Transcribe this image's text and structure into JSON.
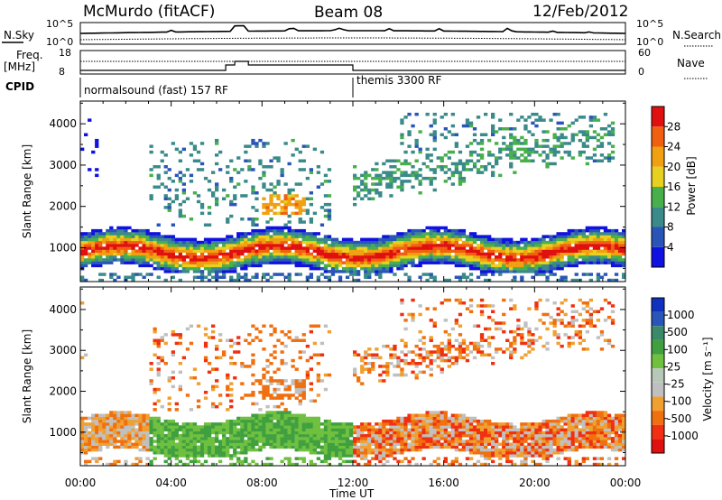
{
  "header": {
    "station": "McMurdo (fitACF)",
    "beam": "Beam 08",
    "date": "12/Feb/2012"
  },
  "summary": {
    "left_label": "N.Sky",
    "left_ticks": [
      "10^5",
      "10^0"
    ],
    "right_label": "N.Search",
    "right_ticks": [
      "10^5",
      "10^0"
    ],
    "freq_label_line1": "Freq.",
    "freq_label_line2": "[MHz]",
    "freq_ticks": [
      "18",
      "8"
    ],
    "nave_label": "Nave",
    "nave_ticks": [
      "60",
      "0"
    ],
    "cpid_label": "CPID",
    "cpid_segments": [
      {
        "label": "normalsound (fast) 157 RF",
        "start_hour": 0,
        "end_hour": 12
      },
      {
        "label": "themis 3300 RF",
        "start_hour": 12,
        "end_hour": 24
      }
    ]
  },
  "colors": {
    "power_scale": [
      "#1010e0",
      "#2a55b8",
      "#3a8a8a",
      "#48b04a",
      "#e8d020",
      "#f0a010",
      "#f06010",
      "#e01010"
    ],
    "velocity_scale": [
      "#e01010",
      "#f03010",
      "#f07010",
      "#f0a030",
      "#c0c0c0",
      "#b8c8b8",
      "#70c040",
      "#40a040",
      "#3a8a6a",
      "#2a55b8",
      "#1030c0"
    ]
  },
  "chart_data": [
    {
      "type": "heatmap",
      "panel": "power",
      "title": "",
      "xlabel": "",
      "ylabel": "Slant Range [km]",
      "xlim_hours": [
        0,
        24
      ],
      "ylim": [
        180,
        4550
      ],
      "x_tick_labels": [
        "00:00",
        "04:00",
        "08:00",
        "12:00",
        "16:00",
        "20:00",
        "00:00"
      ],
      "y_tick_values": [
        1000,
        2000,
        3000,
        4000
      ],
      "colorbar_label": "Power [dB]",
      "colorbar_tick_labels": [
        "4",
        "8",
        "12",
        "16",
        "20",
        "24",
        "28"
      ],
      "colorbar_range": [
        0,
        32
      ]
    },
    {
      "type": "heatmap",
      "panel": "velocity",
      "title": "",
      "xlabel": "Time UT",
      "ylabel": "Slant Range [km]",
      "xlim_hours": [
        0,
        24
      ],
      "ylim": [
        180,
        4550
      ],
      "x_tick_labels": [
        "00:00",
        "04:00",
        "08:00",
        "12:00",
        "16:00",
        "20:00",
        "00:00"
      ],
      "y_tick_values": [
        1000,
        2000,
        3000,
        4000
      ],
      "colorbar_label": "Velocity [m s⁻¹]",
      "colorbar_tick_labels": [
        "1000",
        "500",
        "100",
        "25",
        "-25",
        "-100",
        "-500",
        "-1000"
      ]
    }
  ]
}
